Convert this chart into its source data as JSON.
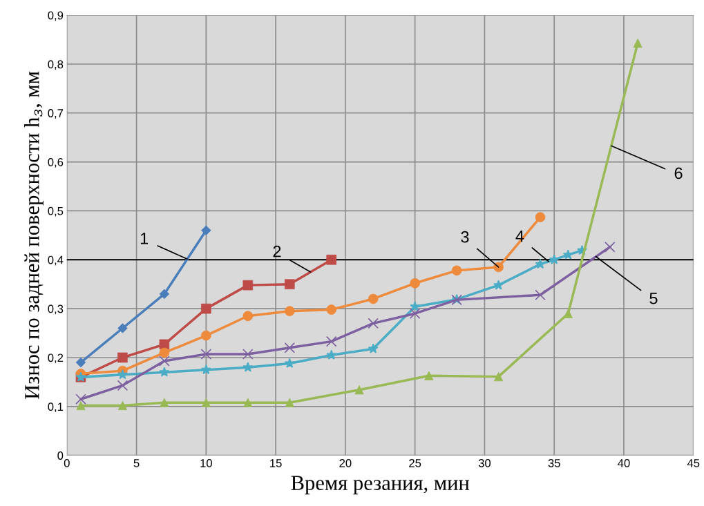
{
  "chart_data": {
    "type": "line",
    "xlabel": "Время резания, мин",
    "ylabel": "Износ по задней поверхности h$_{з}$, мм",
    "series": [
      {
        "name": "1",
        "color": "#4a7ebb",
        "marker": "diamond",
        "x": [
          1,
          4,
          7,
          10
        ],
        "values": [
          0.19,
          0.26,
          0.33,
          0.46
        ]
      },
      {
        "name": "2",
        "color": "#be4b48",
        "marker": "square",
        "x": [
          1,
          4,
          7,
          10,
          13,
          16,
          19
        ],
        "values": [
          0.16,
          0.2,
          0.227,
          0.3,
          0.348,
          0.35,
          0.4
        ]
      },
      {
        "name": "3",
        "color": "#ee8a3c",
        "marker": "circle",
        "x": [
          1,
          4,
          7,
          10,
          13,
          16,
          19,
          22,
          25,
          28,
          31,
          34
        ],
        "values": [
          0.167,
          0.173,
          0.21,
          0.245,
          0.285,
          0.295,
          0.298,
          0.32,
          0.352,
          0.378,
          0.385,
          0.487
        ]
      },
      {
        "name": "4",
        "color": "#4bacc6",
        "marker": "star",
        "x": [
          1,
          4,
          7,
          10,
          13,
          16,
          19,
          22,
          25,
          28,
          31,
          34,
          35,
          36,
          37
        ],
        "values": [
          0.16,
          0.165,
          0.17,
          0.175,
          0.18,
          0.188,
          0.205,
          0.218,
          0.304,
          0.319,
          0.348,
          0.391,
          0.4,
          0.41,
          0.419
        ]
      },
      {
        "name": "5",
        "color": "#7d60a0",
        "marker": "cross",
        "x": [
          1,
          4,
          7,
          10,
          13,
          16,
          19,
          22,
          25,
          28,
          34,
          39
        ],
        "values": [
          0.115,
          0.143,
          0.193,
          0.207,
          0.207,
          0.22,
          0.233,
          0.27,
          0.29,
          0.318,
          0.328,
          0.426
        ]
      },
      {
        "name": "6",
        "color": "#98b954",
        "marker": "triangle",
        "x": [
          1,
          4,
          7,
          10,
          13,
          16,
          21,
          26,
          31,
          36,
          41
        ],
        "values": [
          0.102,
          0.102,
          0.108,
          0.108,
          0.108,
          0.108,
          0.134,
          0.163,
          0.161,
          0.29,
          0.843
        ]
      }
    ],
    "ref_lines": [
      {
        "axis": "y",
        "value": 0.4,
        "color": "#000000",
        "line_style": "solid"
      }
    ],
    "xlim": [
      0,
      45
    ],
    "xticks": [
      0,
      5,
      10,
      15,
      20,
      25,
      30,
      35,
      40,
      45
    ],
    "ylim": [
      0,
      0.9
    ],
    "yticks": [
      0,
      {
        "value": 0.1,
        "label": "0,1"
      },
      {
        "value": 0.2,
        "label": "0,2"
      },
      {
        "value": 0.3,
        "label": "0,3"
      },
      {
        "value": 0.4,
        "label": "0,4"
      },
      {
        "value": 0.5,
        "label": "0,5"
      },
      {
        "value": 0.6,
        "label": "0,6"
      },
      {
        "value": 0.7,
        "label": "0,7"
      },
      {
        "value": 0.8,
        "label": "0,8"
      },
      {
        "value": 0.9,
        "label": "0,9"
      }
    ],
    "grid": true,
    "legend": false
  }
}
